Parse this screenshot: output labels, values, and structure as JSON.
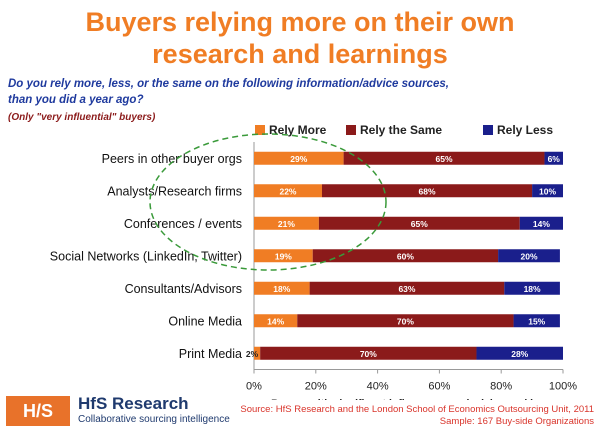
{
  "title_line1": "Buyers relying more on their own",
  "title_line2": "research and learnings",
  "question_line1": "Do you rely more, less, or the same on the following information/advice sources,",
  "question_line2": "than you did a year ago?",
  "note": "(Only \"very influential\" buyers)",
  "footer": {
    "logo": "H/S",
    "brand": "HfS Research",
    "tagline": "Collaborative sourcing intelligence",
    "source_line1": "Source:  HfS Research and the London School of Economics Outsourcing Unit, 2011",
    "source_line2": "Sample: 167 Buy-side Organizations"
  },
  "colors": {
    "rely_more": "#f07d24",
    "rely_same": "#8b1a1a",
    "rely_less": "#1a1f8c",
    "highlight": "#3a9a3a"
  },
  "chart_data": {
    "type": "bar",
    "orientation": "horizontal",
    "stacked": true,
    "categories": [
      "Peers in other buyer orgs",
      "Analysts/Research firms",
      "Conferences / events",
      "Social Networks (LinkedIn, Twitter)",
      "Consultants/Advisors",
      "Online Media",
      "Print Media"
    ],
    "series": [
      {
        "name": "Rely More",
        "values": [
          29,
          22,
          21,
          19,
          18,
          14,
          2
        ]
      },
      {
        "name": "Rely the Same",
        "values": [
          65,
          68,
          65,
          60,
          63,
          70,
          70
        ]
      },
      {
        "name": "Rely Less",
        "values": [
          6,
          10,
          14,
          20,
          18,
          15,
          28
        ]
      }
    ],
    "xlabel": "Buyers with significant influence over decision-making",
    "xlim": [
      0,
      100
    ],
    "xticks": [
      "0%",
      "20%",
      "40%",
      "60%",
      "80%",
      "100%"
    ],
    "legend": "top",
    "value_suffix": "%"
  }
}
